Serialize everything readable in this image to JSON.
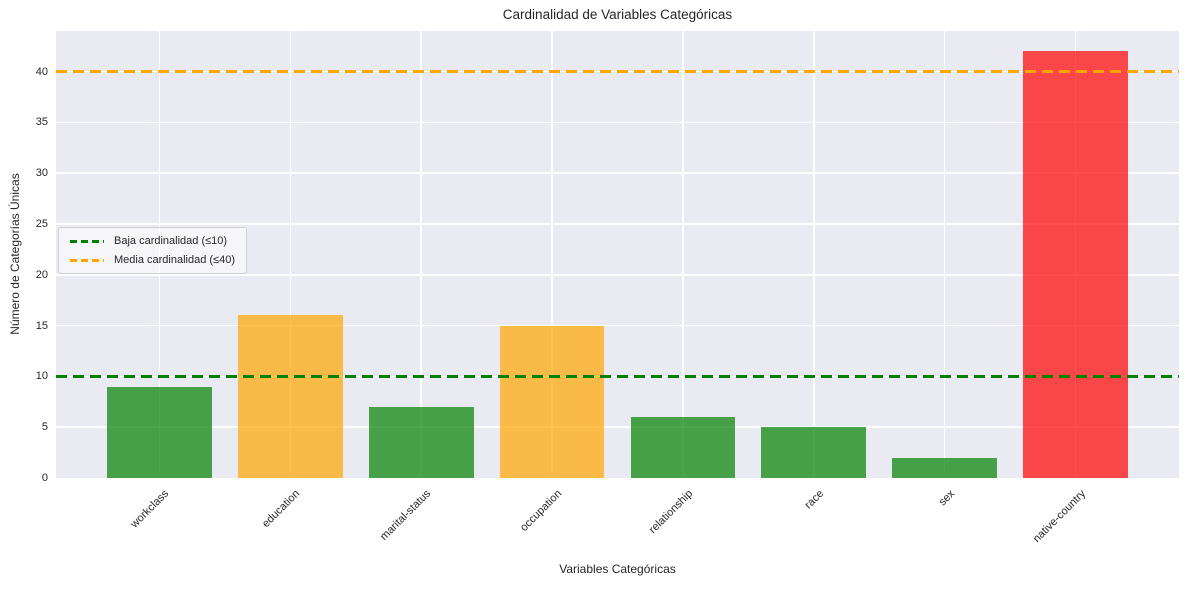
{
  "chart_data": {
    "type": "bar",
    "title": "Cardinalidad de Variables Categóricas",
    "xlabel": "Variables Categóricas",
    "ylabel": "Número de Categorías Únicas",
    "categories": [
      "workclass",
      "education",
      "marital-status",
      "occupation",
      "relationship",
      "race",
      "sex",
      "native-country"
    ],
    "values": [
      9,
      16,
      7,
      15,
      6,
      5,
      2,
      42
    ],
    "bar_colors": [
      "rgba(0,128,0,0.7)",
      "rgba(255,165,0,0.7)",
      "rgba(0,128,0,0.7)",
      "rgba(255,165,0,0.7)",
      "rgba(0,128,0,0.7)",
      "rgba(0,128,0,0.7)",
      "rgba(0,128,0,0.7)",
      "rgba(255,0,0,0.7)"
    ],
    "bar_colors_blended_hex": [
      "#46A049",
      "#F8B849",
      "#46A049",
      "#F8B849",
      "#46A049",
      "#46A049",
      "#46A049",
      "#F84649"
    ],
    "ylim": [
      0,
      44
    ],
    "yticks": [
      0,
      5,
      10,
      15,
      20,
      25,
      30,
      35,
      40
    ],
    "grid": true,
    "plot_bg": "#EAEAF2",
    "grid_color": "#FFFFFF",
    "text_color": "#262626",
    "reference_lines": [
      {
        "value": 10,
        "color": "#008000",
        "style": "dashed",
        "label": "Baja cardinalidad (≤10)"
      },
      {
        "value": 40,
        "color": "#FFA500",
        "style": "dashed",
        "label": "Media cardinalidad (≤40)"
      }
    ],
    "legend_position": "center left",
    "xtick_rotation": 45
  }
}
